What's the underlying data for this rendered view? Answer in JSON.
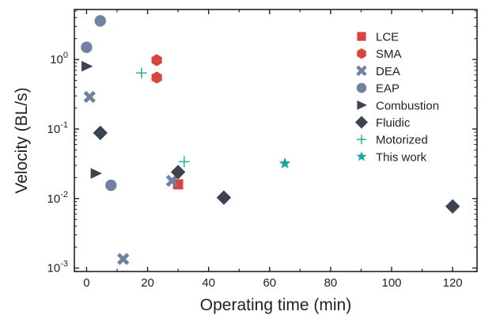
{
  "chart_data": {
    "type": "scatter",
    "title": "",
    "xlabel": "Operating time (min)",
    "ylabel": "Velocity (BL/s)",
    "xlim": [
      -4,
      128
    ],
    "ylim_log10": [
      -3.05,
      0.72
    ],
    "yscale": "log",
    "xticks": [
      0,
      20,
      40,
      60,
      80,
      100,
      120
    ],
    "yticks": [
      {
        "exp": -3,
        "label": "10",
        "sup": "-3"
      },
      {
        "exp": -2,
        "label": "10",
        "sup": "-2"
      },
      {
        "exp": -1,
        "label": "10",
        "sup": "-1"
      },
      {
        "exp": 0,
        "label": "10",
        "sup": "0"
      }
    ],
    "legend_position": "top-right",
    "grid": false,
    "series": [
      {
        "name": "LCE",
        "marker": "square",
        "color": "#d9443f",
        "points": [
          [
            30,
            0.016
          ]
        ]
      },
      {
        "name": "SMA",
        "marker": "hexagon",
        "color": "#d9443f",
        "points": [
          [
            23,
            0.98
          ],
          [
            23,
            0.55
          ]
        ]
      },
      {
        "name": "DEA",
        "marker": "x-thick",
        "color": "#6f82a0",
        "points": [
          [
            1,
            0.29
          ],
          [
            28,
            0.018
          ],
          [
            12,
            0.00135
          ]
        ]
      },
      {
        "name": "EAP",
        "marker": "circle",
        "color": "#6f82a0",
        "points": [
          [
            0,
            1.5
          ],
          [
            4.5,
            3.6
          ],
          [
            8,
            0.0155
          ]
        ]
      },
      {
        "name": "Combustion",
        "marker": "triangle-right",
        "color": "#3d4451",
        "points": [
          [
            0,
            0.8
          ],
          [
            3,
            0.023
          ]
        ]
      },
      {
        "name": "Fluidic",
        "marker": "diamond",
        "color": "#3d4451",
        "points": [
          [
            4.5,
            0.088
          ],
          [
            30,
            0.024
          ],
          [
            45,
            0.0103
          ],
          [
            120,
            0.0077
          ]
        ]
      },
      {
        "name": "Motorized",
        "marker": "plus",
        "color": "#1aa89a",
        "points": [
          [
            18,
            0.64
          ],
          [
            32,
            0.034
          ]
        ]
      },
      {
        "name": "This work",
        "marker": "star",
        "color": "#1aa89a",
        "points": [
          [
            65,
            0.032
          ]
        ]
      }
    ]
  }
}
